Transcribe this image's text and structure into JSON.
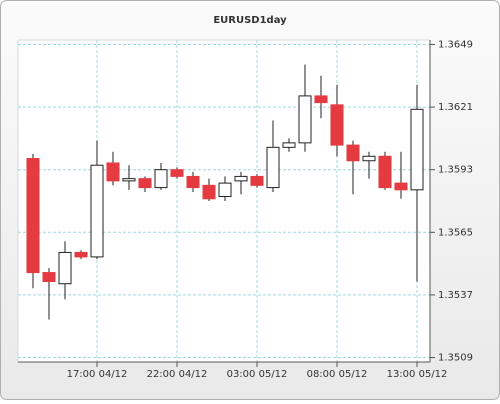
{
  "chart_data": {
    "type": "candlestick",
    "title": "EURUSD1day",
    "categories": [
      null,
      null,
      null,
      null,
      "17:00 04/12",
      null,
      null,
      null,
      null,
      "22:00 04/12",
      null,
      null,
      null,
      null,
      "03:00 05/12",
      null,
      null,
      null,
      null,
      "08:00 05/12",
      null,
      null,
      null,
      null,
      "13:00 05/12"
    ],
    "series": [
      {
        "name": "EURUSD",
        "open": [
          1.3598,
          1.3547,
          1.3542,
          1.3556,
          1.3554,
          1.3596,
          1.3588,
          1.3589,
          1.3585,
          1.3593,
          1.359,
          1.3586,
          1.3581,
          1.3588,
          1.359,
          1.3585,
          1.3603,
          1.3605,
          1.3626,
          1.3622,
          1.3604,
          1.3597,
          1.3599,
          1.3587,
          1.3584
        ],
        "high": [
          1.36,
          1.3549,
          1.3561,
          1.3557,
          1.3606,
          1.3601,
          1.3595,
          1.359,
          1.3596,
          1.3594,
          1.3592,
          1.3589,
          1.359,
          1.3592,
          1.3591,
          1.3615,
          1.3607,
          1.364,
          1.3635,
          1.3631,
          1.3606,
          1.3601,
          1.3601,
          1.3601,
          1.3631
        ],
        "low": [
          1.354,
          1.3526,
          1.3535,
          1.3553,
          1.3553,
          1.3586,
          1.3584,
          1.3583,
          1.3584,
          1.3589,
          1.3583,
          1.3579,
          1.3579,
          1.3582,
          1.3585,
          1.3583,
          1.3601,
          1.3601,
          1.3616,
          1.3599,
          1.3582,
          1.3589,
          1.3584,
          1.358,
          1.3543
        ],
        "close": [
          1.3547,
          1.3543,
          1.3556,
          1.3554,
          1.3595,
          1.3588,
          1.3589,
          1.3585,
          1.3593,
          1.359,
          1.3585,
          1.358,
          1.3587,
          1.359,
          1.3586,
          1.3603,
          1.3605,
          1.3626,
          1.3623,
          1.3604,
          1.3597,
          1.3599,
          1.3585,
          1.3584,
          1.362
        ]
      }
    ],
    "up_color": "#ffffff",
    "down_color": "#e53a40",
    "ylim": [
      1.3507,
      1.3651
    ],
    "yticks": [
      1.3509,
      1.3537,
      1.3565,
      1.3593,
      1.3621,
      1.3649
    ],
    "grid": true
  }
}
